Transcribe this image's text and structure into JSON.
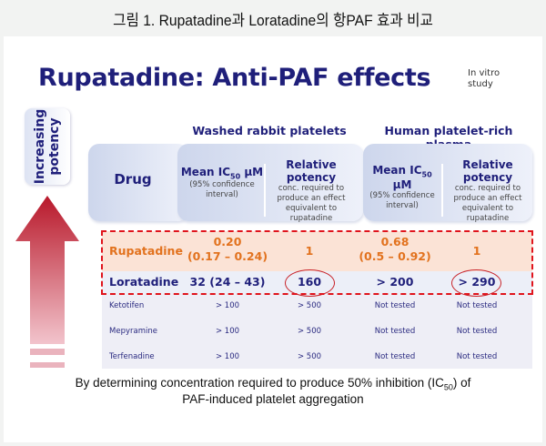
{
  "caption": "그림 1. Rupatadine과 Loratadine의 항PAF 효과 비교",
  "slide": {
    "title": "Rupatadine: Anti-PAF effects",
    "study_label_line1": "In vitro",
    "study_label_line2": "study",
    "potency_label_line1": "Increasing",
    "potency_label_line2": "potency",
    "colors": {
      "title": "#1f1f7a",
      "highlight": "#e2721e",
      "arrow": "#b8182a",
      "dashed": "#e0141c"
    },
    "table": {
      "drug_header": "Drug",
      "groups": [
        {
          "label": "Washed rabbit platelets",
          "mean_label": "Mean IC",
          "mean_sub": "50",
          "mean_unit": " μM",
          "mean_note": "(95% confidence interval)",
          "rel_label": "Relative potency",
          "rel_note": "conc. required to produce an effect equivalent to rupatadine"
        },
        {
          "label": "Human platelet-rich plasma",
          "mean_label": "Mean IC",
          "mean_sub": "50",
          "mean_unit": " μM",
          "mean_note": "(95% confidence interval)",
          "rel_label": "Relative potency",
          "rel_note": "conc. required to produce an effect equivalent to rupatadine"
        }
      ],
      "rows": [
        {
          "drug": "Rupatadine",
          "c1a": "0.20",
          "c1b": "(0.17 – 0.24)",
          "c2": "1",
          "c3a": "0.68",
          "c3b": "(0.5 – 0.92)",
          "c4": "1"
        },
        {
          "drug": "Loratadine",
          "c1": "32 (24 – 43)",
          "c2": "160",
          "c3": "> 200",
          "c4": "> 290",
          "circled": [
            "c2",
            "c4"
          ]
        },
        {
          "drug": "Ketotifen",
          "c1": "> 100",
          "c2": "> 500",
          "c3": "Not tested",
          "c4": "Not tested"
        },
        {
          "drug": "Mepyramine",
          "c1": "> 100",
          "c2": "> 500",
          "c3": "Not tested",
          "c4": "Not tested"
        },
        {
          "drug": "Terfenadine",
          "c1": "> 100",
          "c2": "> 500",
          "c3": "Not tested",
          "c4": "Not tested"
        }
      ]
    },
    "footnote_a": "By determining concentration required to produce 50% inhibition (IC",
    "footnote_sub": "50",
    "footnote_b": ") of",
    "footnote_line2": "PAF-induced platelet aggregation"
  }
}
